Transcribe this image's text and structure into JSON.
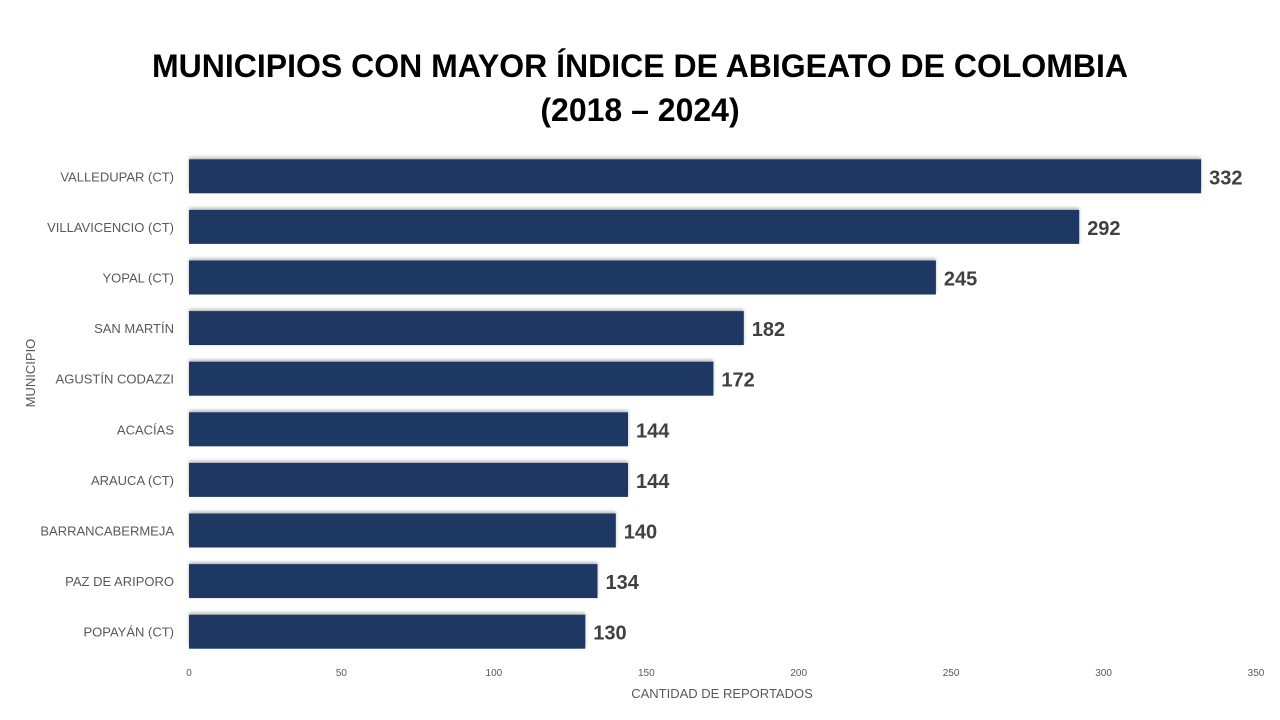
{
  "chart_data": {
    "type": "bar",
    "orientation": "horizontal",
    "title": [
      "MUNICIPIOS CON MAYOR ÍNDICE DE ABIGEATO DE COLOMBIA",
      "(2018 – 2024)"
    ],
    "xlabel": "CANTIDAD DE REPORTADOS",
    "ylabel": "MUNICIPIO",
    "categories": [
      "VALLEDUPAR (CT)",
      "VILLAVICENCIO (CT)",
      "YOPAL (CT)",
      "SAN MARTÍN",
      "AGUSTÍN CODAZZI",
      "ACACÍAS",
      "ARAUCA (CT)",
      "BARRANCABERMEJA",
      "PAZ DE ARIPORO",
      "POPAYÁN (CT)"
    ],
    "values": [
      332,
      292,
      245,
      182,
      172,
      144,
      144,
      140,
      134,
      130
    ],
    "xlim": [
      0,
      350
    ],
    "xticks": [
      "0",
      "50",
      "100",
      "150",
      "200",
      "250",
      "300",
      "350"
    ],
    "grid": false,
    "legend": "none",
    "bar_color": "#1F3864"
  }
}
